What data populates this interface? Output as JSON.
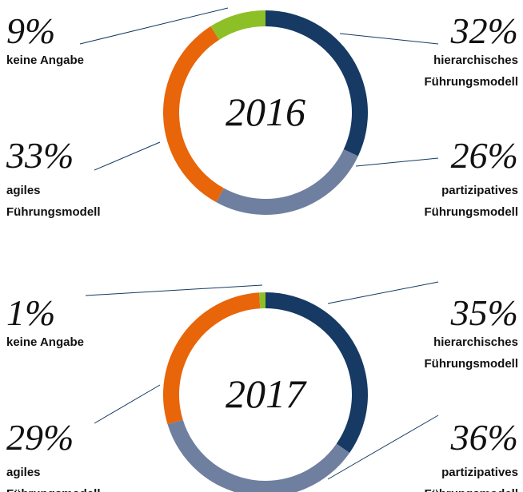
{
  "chart_data": [
    {
      "type": "pie",
      "title": "2016",
      "categories": [
        "hierarchisches Führungsmodell",
        "partizipatives Führungsmodell",
        "agiles Führungsmodell",
        "keine Angabe"
      ],
      "values": [
        32,
        26,
        33,
        9
      ],
      "value_labels": [
        "32%",
        "26%",
        "33%",
        "9%"
      ],
      "colors": [
        "#163a63",
        "#6f7f9f",
        "#e8650a",
        "#8dbf27"
      ]
    },
    {
      "type": "pie",
      "title": "2017",
      "categories": [
        "hierarchisches Führungsmodell",
        "partizipatives Führungsmodell",
        "agiles Führungsmodell",
        "keine Angabe"
      ],
      "values": [
        35,
        36,
        29,
        1
      ],
      "value_labels": [
        "35%",
        "36%",
        "29%",
        "1%"
      ],
      "colors": [
        "#163a63",
        "#6f7f9f",
        "#e8650a",
        "#8dbf27"
      ]
    }
  ]
}
